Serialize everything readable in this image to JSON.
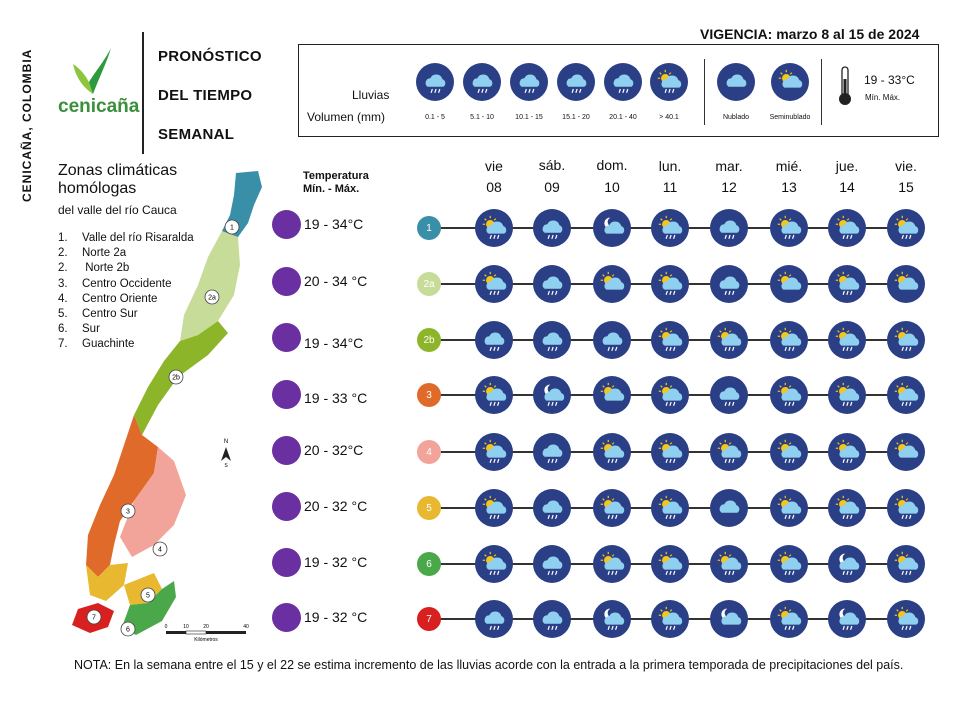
{
  "side_label": "CENICAÑA, COLOMBIA",
  "brand": {
    "name": "cenicaña",
    "color": "#3a8f3a"
  },
  "title_lines": [
    "PRONÓSTICO",
    "DEL TIEMPO",
    "SEMANAL"
  ],
  "vigencia": "VIGENCIA: marzo 8 al 15 de 2024",
  "legend": {
    "rain_label": "Lluvias",
    "volume_label": "Volumen (mm)",
    "rain_ranges": [
      "0.1 - 5",
      "5.1 - 10",
      "10.1 - 15",
      "15.1 - 20",
      "20.1 - 40",
      "> 40.1"
    ],
    "sky": [
      "Nublado",
      "Seminublado"
    ],
    "temp_range": "19 - 33°C",
    "temp_minmax": "Mín.   Máx."
  },
  "zones_title": "Zonas climáticas homólogas",
  "zones_subtitle": "del valle del río Cauca",
  "zones_list": [
    {
      "n": "1.",
      "name": "Valle del río Risaralda"
    },
    {
      "n": "2.",
      "name": "Norte 2a"
    },
    {
      "n": "2.",
      "name": " Norte 2b"
    },
    {
      "n": "3.",
      "name": "Centro Occidente"
    },
    {
      "n": "4.",
      "name": "Centro Oriente"
    },
    {
      "n": "5.",
      "name": "Centro Sur"
    },
    {
      "n": "6.",
      "name": "Sur"
    },
    {
      "n": "7.",
      "name": "Guachinte"
    }
  ],
  "temp_header": [
    "Temperatura",
    "Mín. - Máx."
  ],
  "temperatures": [
    "19 - 34°C",
    "20 - 34 °C",
    "19 - 34°C",
    "19 - 33 °C",
    "20 - 32°C",
    "20 - 32 °C",
    "19 - 32 °C",
    "19 - 32 °C"
  ],
  "days": [
    {
      "name": "vie",
      "num": "08"
    },
    {
      "name": "sáb.",
      "num": "09"
    },
    {
      "name": "dom.",
      "num": "10"
    },
    {
      "name": "lun.",
      "num": "11"
    },
    {
      "name": "mar.",
      "num": "12"
    },
    {
      "name": "mié.",
      "num": "13"
    },
    {
      "name": "jue.",
      "num": "14"
    },
    {
      "name": "vie.",
      "num": "15"
    }
  ],
  "zones": [
    {
      "id": "1",
      "color": "#3a8fa8",
      "forecast": [
        "partly-rain-light",
        "rain-light",
        "moon-cloud",
        "partly-rain-light",
        "rain-light",
        "partly-rain-light",
        "partly-rain-light",
        "partly-rain-light"
      ]
    },
    {
      "id": "2a",
      "color": "#c8dc9a",
      "forecast": [
        "partly-rain-light",
        "rain-light",
        "partly-cloud",
        "partly-rain-light",
        "rain-light",
        "partly-cloud",
        "partly-rain-light",
        "partly-cloud"
      ]
    },
    {
      "id": "2b",
      "color": "#8db52a",
      "forecast": [
        "rain-light",
        "rain-light",
        "rain-light",
        "partly-rain-light",
        "partly-rain-light",
        "partly-rain-light",
        "partly-rain-light",
        "partly-rain-light"
      ]
    },
    {
      "id": "3",
      "color": "#e06a2a",
      "forecast": [
        "partly-rain-light",
        "moon-rain",
        "partly-cloud",
        "partly-rain-light",
        "rain-light",
        "partly-rain-light",
        "partly-rain-light",
        "partly-rain-light"
      ]
    },
    {
      "id": "4",
      "color": "#f2a49a",
      "forecast": [
        "partly-rain-light",
        "rain-light",
        "partly-rain-light",
        "partly-rain-light",
        "partly-rain-light",
        "partly-rain-light",
        "partly-rain-light",
        "partly-cloud"
      ]
    },
    {
      "id": "5",
      "color": "#e8b830",
      "forecast": [
        "partly-rain-light",
        "rain-light",
        "partly-rain-light",
        "partly-rain-light",
        "cloud",
        "partly-rain-light",
        "partly-rain-light",
        "partly-rain-light"
      ]
    },
    {
      "id": "6",
      "color": "#4aa84a",
      "forecast": [
        "partly-rain-light",
        "rain-light",
        "partly-rain-light",
        "partly-rain-light",
        "partly-rain-light",
        "partly-rain-light",
        "moon-rain",
        "partly-rain-light"
      ]
    },
    {
      "id": "7",
      "color": "#d82020",
      "forecast": [
        "rain-light",
        "rain-light",
        "moon-rain",
        "partly-rain-light",
        "moon-cloud",
        "partly-rain-light",
        "moon-rain",
        "partly-rain-light"
      ]
    }
  ],
  "map": {
    "compass": "N",
    "compass_s": "S",
    "scale_ticks": [
      "0",
      "10",
      "20",
      "40"
    ],
    "scale_unit": "Kilómetros",
    "labels": [
      "1",
      "2a",
      "2b",
      "3",
      "4",
      "5",
      "6",
      "7"
    ]
  },
  "note": "NOTA: En la semana entre el 15 y el 22 se estima incremento de las lluvias acorde con la entrada a la primera temporada de precipitaciones del país.",
  "colors": {
    "icon_bg": "#2b3f86",
    "temp_dot": "#6a2fa0"
  }
}
